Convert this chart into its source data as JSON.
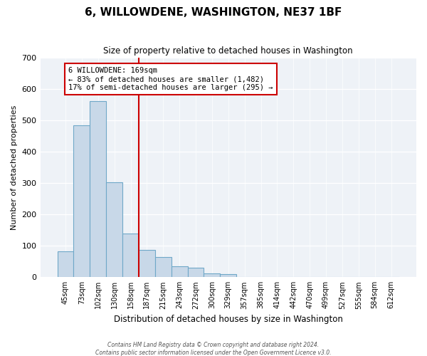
{
  "title": "6, WILLOWDENE, WASHINGTON, NE37 1BF",
  "subtitle": "Size of property relative to detached houses in Washington",
  "xlabel": "Distribution of detached houses by size in Washington",
  "ylabel": "Number of detached properties",
  "bar_values": [
    82,
    484,
    560,
    303,
    139,
    86,
    65,
    35,
    30,
    12,
    10,
    0,
    0,
    0,
    0,
    0,
    0,
    0,
    0,
    0,
    0
  ],
  "bar_labels": [
    "45sqm",
    "73sqm",
    "102sqm",
    "130sqm",
    "158sqm",
    "187sqm",
    "215sqm",
    "243sqm",
    "272sqm",
    "300sqm",
    "329sqm",
    "357sqm",
    "385sqm",
    "414sqm",
    "442sqm",
    "470sqm",
    "499sqm",
    "527sqm",
    "555sqm",
    "584sqm",
    "612sqm"
  ],
  "bar_color": "#c8d8e8",
  "bar_edge_color": "#6fa8c8",
  "vline_x": 4.5,
  "vline_color": "#cc0000",
  "annotation_title": "6 WILLOWDENE: 169sqm",
  "annotation_line1": "← 83% of detached houses are smaller (1,482)",
  "annotation_line2": "17% of semi-detached houses are larger (295) →",
  "annotation_box_color": "#ffffff",
  "annotation_box_edge": "#cc0000",
  "ylim": [
    0,
    700
  ],
  "yticks": [
    0,
    100,
    200,
    300,
    400,
    500,
    600,
    700
  ],
  "footer1": "Contains HM Land Registry data © Crown copyright and database right 2024.",
  "footer2": "Contains public sector information licensed under the Open Government Licence v3.0.",
  "background_color": "#ffffff",
  "plot_bg_color": "#eef2f7"
}
